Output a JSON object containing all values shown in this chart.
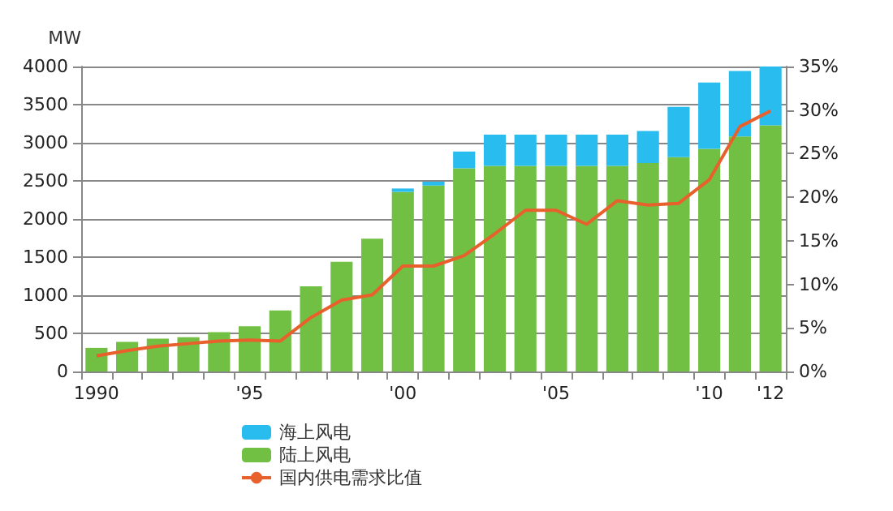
{
  "chart_data": {
    "type": "bar",
    "stacked": true,
    "ylabel": "MW",
    "categories": [
      "1990",
      null,
      null,
      null,
      null,
      "'95",
      null,
      null,
      null,
      null,
      "'00",
      null,
      null,
      null,
      null,
      "'05",
      null,
      null,
      null,
      null,
      "'10",
      null,
      "'12"
    ],
    "series": [
      {
        "name": "陆上风电",
        "color": "#72c043",
        "values": [
          310,
          387,
          432,
          450,
          516,
          594,
          800,
          1116,
          1439,
          1742,
          2355,
          2440,
          2665,
          2697,
          2697,
          2697,
          2697,
          2697,
          2735,
          2812,
          2921,
          3082,
          3230
        ]
      },
      {
        "name": "海上风电",
        "color": "#29bdef",
        "values": [
          0,
          0,
          0,
          0,
          0,
          0,
          0,
          0,
          0,
          0,
          45,
          50,
          220,
          410,
          410,
          410,
          410,
          410,
          420,
          660,
          870,
          860,
          770
        ]
      },
      {
        "name": "国内供电需求比值",
        "type": "line",
        "axis": "y2",
        "color": "#e8602c",
        "values": [
          1.8,
          2.4,
          2.9,
          3.2,
          3.5,
          3.6,
          3.5,
          6.2,
          8.2,
          8.8,
          12.1,
          12.1,
          13.3,
          15.8,
          18.5,
          18.5,
          16.9,
          19.6,
          19.1,
          19.3,
          22.0,
          28.1,
          29.9
        ]
      }
    ],
    "ylim": [
      0,
      4000
    ],
    "yticks": [
      0,
      500,
      1000,
      1500,
      2000,
      2500,
      3000,
      3500,
      4000
    ],
    "y2lim": [
      0,
      35
    ],
    "y2ticks": [
      {
        "value": 0,
        "label": "0%"
      },
      {
        "value": 5,
        "label": "5%"
      },
      {
        "value": 10,
        "label": "10%"
      },
      {
        "value": 15,
        "label": "15%"
      },
      {
        "value": 20,
        "label": "20%"
      },
      {
        "value": 25,
        "label": "25%"
      },
      {
        "value": 30,
        "label": "30%"
      },
      {
        "value": 35,
        "label": "35%"
      }
    ],
    "grid": "y",
    "legend": "bottom left",
    "marker": "none"
  }
}
